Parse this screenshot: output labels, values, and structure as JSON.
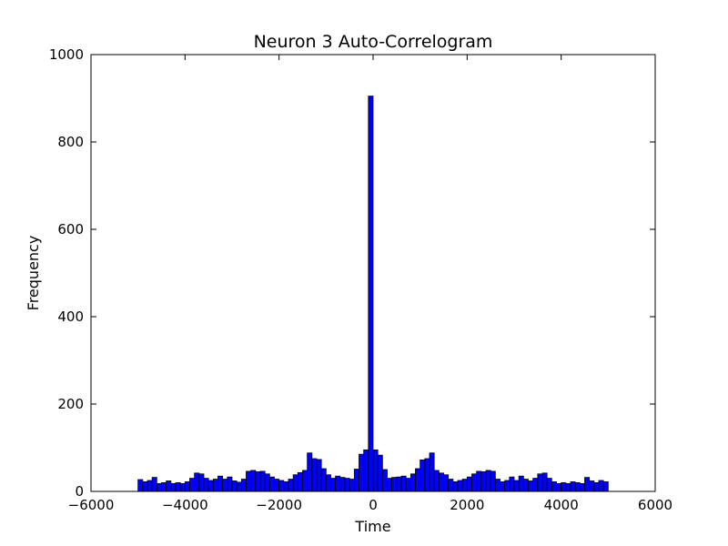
{
  "chart_data": {
    "type": "bar",
    "title": "Neuron 3 Auto-Correlogram",
    "xlabel": "Time",
    "ylabel": "Frequency",
    "xlim": [
      -6000,
      6000
    ],
    "ylim": [
      0,
      1000
    ],
    "xticks": [
      -6000,
      -4000,
      -2000,
      0,
      2000,
      4000,
      6000
    ],
    "xtick_labels": [
      "−6000",
      "−4000",
      "−2000",
      "0",
      "2000",
      "4000",
      "6000"
    ],
    "yticks": [
      0,
      200,
      400,
      600,
      800,
      1000
    ],
    "ytick_labels": [
      "0",
      "200",
      "400",
      "600",
      "800",
      "1000"
    ],
    "grid": false,
    "bar_color": "#0000ff",
    "bar_edge_color": "#000000",
    "bin_width": 100,
    "bins_start": [
      -5000,
      -4900,
      -4800,
      -4700,
      -4600,
      -4500,
      -4400,
      -4300,
      -4200,
      -4100,
      -4000,
      -3900,
      -3800,
      -3700,
      -3600,
      -3500,
      -3400,
      -3300,
      -3200,
      -3100,
      -3000,
      -2900,
      -2800,
      -2700,
      -2600,
      -2500,
      -2400,
      -2300,
      -2200,
      -2100,
      -2000,
      -1900,
      -1800,
      -1700,
      -1600,
      -1500,
      -1400,
      -1300,
      -1200,
      -1100,
      -1000,
      -900,
      -800,
      -700,
      -600,
      -500,
      -400,
      -300,
      -200,
      -100,
      0,
      100,
      200,
      300,
      400,
      500,
      600,
      700,
      800,
      900,
      1000,
      1100,
      1200,
      1300,
      1400,
      1500,
      1600,
      1700,
      1800,
      1900,
      2000,
      2100,
      2200,
      2300,
      2400,
      2500,
      2600,
      2700,
      2800,
      2900,
      3000,
      3100,
      3200,
      3300,
      3400,
      3500,
      3600,
      3700,
      3800,
      3900,
      4000,
      4100,
      4200,
      4300,
      4400,
      4500,
      4600,
      4700,
      4800,
      4900
    ],
    "values": [
      27,
      22,
      25,
      32,
      18,
      20,
      24,
      18,
      20,
      18,
      22,
      30,
      42,
      40,
      30,
      25,
      28,
      35,
      28,
      33,
      24,
      21,
      28,
      46,
      48,
      45,
      46,
      40,
      33,
      28,
      25,
      22,
      28,
      38,
      43,
      48,
      88,
      75,
      73,
      52,
      38,
      30,
      35,
      32,
      30,
      28,
      51,
      85,
      95,
      905,
      95,
      83,
      50,
      30,
      32,
      33,
      35,
      30,
      40,
      52,
      72,
      75,
      88,
      48,
      42,
      38,
      28,
      22,
      25,
      28,
      33,
      40,
      46,
      45,
      48,
      46,
      28,
      22,
      25,
      33,
      25,
      35,
      28,
      24,
      30,
      40,
      42,
      30,
      22,
      18,
      20,
      18,
      22,
      20,
      18,
      32,
      24,
      20,
      25,
      22
    ]
  }
}
